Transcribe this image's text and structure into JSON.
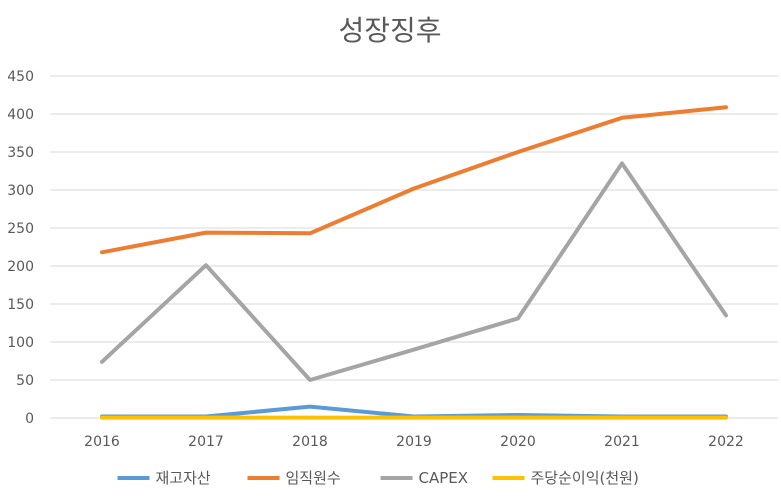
{
  "chart_data": {
    "type": "line",
    "title": "성장징후",
    "xlabel": "",
    "ylabel": "",
    "categories": [
      "2016",
      "2017",
      "2018",
      "2019",
      "2020",
      "2021",
      "2022"
    ],
    "ylim": [
      0,
      450
    ],
    "yticks": [
      0,
      50,
      100,
      150,
      200,
      250,
      300,
      350,
      400,
      450
    ],
    "grid": true,
    "legend_position": "bottom",
    "series": [
      {
        "name": "재고자산",
        "color": "#5B9BD5",
        "values": [
          2,
          2,
          15,
          2,
          4,
          2,
          2
        ]
      },
      {
        "name": "임직원수",
        "color": "#ED7D31",
        "values": [
          218,
          244,
          243,
          302,
          350,
          395,
          409
        ]
      },
      {
        "name": "CAPEX",
        "color": "#A5A5A5",
        "values": [
          74,
          201,
          50,
          90,
          131,
          335,
          135
        ]
      },
      {
        "name": "주당순이익(천원)",
        "color": "#FFC000",
        "values": [
          0.5,
          0.5,
          0.5,
          0.5,
          0.5,
          0.5,
          0.5
        ]
      }
    ]
  }
}
